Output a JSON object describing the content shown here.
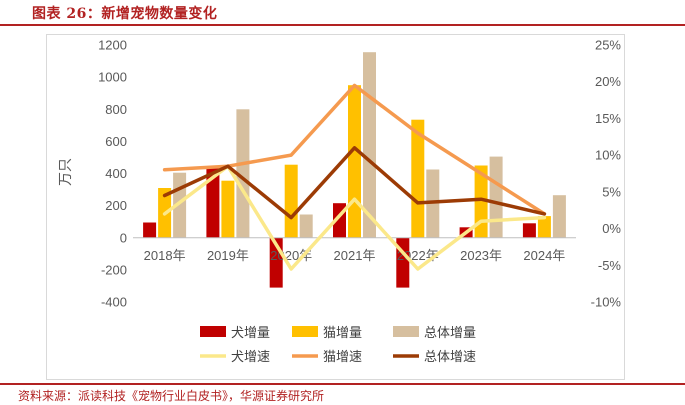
{
  "header": {
    "title": "图表 26：新增宠物数量变化"
  },
  "footer": {
    "source": "资料来源：派读科技《宠物行业白皮书》，华源证券研究所"
  },
  "colors": {
    "dog_amount": "#c00000",
    "cat_amount": "#ffc000",
    "total_amount": "#d6bf9f",
    "dog_rate": "#fbe88a",
    "cat_rate": "#f59a4f",
    "total_rate": "#9c3b05",
    "title_red": "#b22222"
  },
  "chart_data": {
    "type": "bar",
    "categories": [
      "2018年",
      "2019年",
      "2020年",
      "2021年",
      "2022年",
      "2023年",
      "2024年"
    ],
    "ylabel": "万只",
    "ylim": [
      -400,
      1200
    ],
    "yticks": [
      -400,
      -200,
      0,
      200,
      400,
      600,
      800,
      1000,
      1200
    ],
    "y2lim": [
      -10,
      25
    ],
    "y2ticks": [
      -10,
      -5,
      0,
      5,
      10,
      15,
      20,
      25
    ],
    "y2tick_labels": [
      "-10%",
      "-5%",
      "0%",
      "5%",
      "10%",
      "15%",
      "20%",
      "25%"
    ],
    "legend_position": "bottom",
    "grid": false,
    "series": [
      {
        "name": "犬增量",
        "type": "bar",
        "axis": "left",
        "color": "#c00000",
        "values": [
          95,
          440,
          -310,
          215,
          -310,
          65,
          90
        ]
      },
      {
        "name": "猫增量",
        "type": "bar",
        "axis": "left",
        "color": "#ffc000",
        "values": [
          310,
          355,
          455,
          950,
          735,
          450,
          135
        ]
      },
      {
        "name": "总体增量",
        "type": "bar",
        "axis": "left",
        "color": "#d6bf9f",
        "values": [
          405,
          800,
          145,
          1155,
          425,
          505,
          265
        ]
      },
      {
        "name": "犬增速",
        "type": "line",
        "axis": "right",
        "color": "#fbe88a",
        "values": [
          2.0,
          8.5,
          -5.5,
          4.0,
          -5.5,
          1.0,
          1.5
        ]
      },
      {
        "name": "猫增速",
        "type": "line",
        "axis": "right",
        "color": "#f59a4f",
        "values": [
          8.0,
          8.5,
          10.0,
          19.5,
          13.0,
          7.5,
          2.0
        ]
      },
      {
        "name": "总体增速",
        "type": "line",
        "axis": "right",
        "color": "#9c3b05",
        "values": [
          4.5,
          8.5,
          1.5,
          11.0,
          3.5,
          4.0,
          2.0
        ]
      }
    ]
  }
}
